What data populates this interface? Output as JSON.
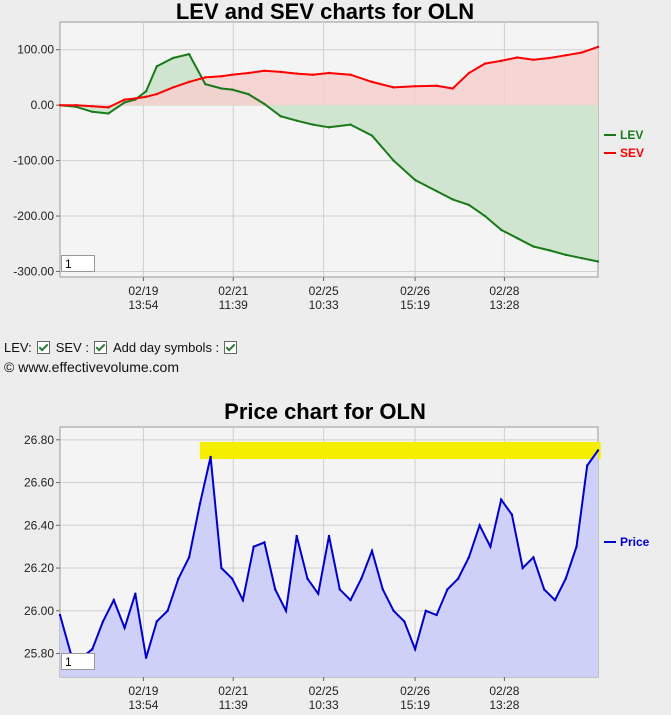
{
  "chart_data": [
    {
      "type": "area",
      "title": "LEV and SEV charts for OLN",
      "ylim": [
        -310,
        150
      ],
      "y_ticks": [
        "100.00",
        "0.00",
        "-100.00",
        "-200.00",
        "-300.00"
      ],
      "x_ticks": [
        {
          "date": "02/19",
          "time": "13:54"
        },
        {
          "date": "02/21",
          "time": "11:39"
        },
        {
          "date": "02/25",
          "time": "10:33"
        },
        {
          "date": "02/26",
          "time": "15:19"
        },
        {
          "date": "02/28",
          "time": "13:28"
        }
      ],
      "x": [
        0,
        3,
        6,
        9,
        12,
        14,
        16,
        18,
        21,
        24,
        27,
        30,
        32,
        35,
        38,
        41,
        44,
        47,
        50,
        54,
        58,
        62,
        66,
        70,
        73,
        76,
        79,
        82,
        85,
        88,
        91,
        94,
        97,
        100
      ],
      "series": [
        {
          "name": "LEV",
          "color": "#1a7a1a",
          "values": [
            0,
            -3,
            -12,
            -15,
            5,
            10,
            25,
            70,
            85,
            92,
            38,
            30,
            28,
            20,
            2,
            -20,
            -28,
            -35,
            -40,
            -35,
            -55,
            -100,
            -135,
            -155,
            -170,
            -180,
            -200,
            -225,
            -240,
            -255,
            -262,
            -270,
            -276,
            -282
          ]
        },
        {
          "name": "SEV",
          "color": "#ff0000",
          "values": [
            0,
            0,
            -2,
            -4,
            10,
            12,
            15,
            20,
            32,
            42,
            50,
            52,
            55,
            58,
            62,
            60,
            57,
            55,
            58,
            55,
            42,
            32,
            34,
            35,
            30,
            58,
            75,
            80,
            86,
            82,
            85,
            90,
            95,
            105
          ]
        }
      ],
      "legend_position": "right",
      "page_box": "1"
    },
    {
      "type": "area",
      "title": "Price chart for OLN",
      "ylim": [
        25.69,
        26.86
      ],
      "y_ticks": [
        "26.80",
        "26.60",
        "26.40",
        "26.20",
        "26.00",
        "25.80"
      ],
      "x_ticks": [
        {
          "date": "02/19",
          "time": "13:54"
        },
        {
          "date": "02/21",
          "time": "11:39"
        },
        {
          "date": "02/25",
          "time": "10:33"
        },
        {
          "date": "02/26",
          "time": "15:19"
        },
        {
          "date": "02/28",
          "time": "13:28"
        }
      ],
      "x": [
        0,
        2,
        4,
        6,
        8,
        10,
        12,
        14,
        16,
        18,
        20,
        22,
        24,
        26,
        28,
        30,
        32,
        34,
        36,
        38,
        40,
        42,
        44,
        46,
        48,
        50,
        52,
        54,
        56,
        58,
        60,
        62,
        64,
        66,
        68,
        70,
        72,
        74,
        76,
        78,
        80,
        82,
        84,
        86,
        88,
        90,
        92,
        94,
        96,
        98,
        100
      ],
      "series": [
        {
          "name": "Price",
          "color": "#0000cc",
          "values": [
            25.98,
            25.8,
            25.78,
            25.82,
            25.95,
            26.05,
            25.92,
            26.08,
            25.78,
            25.95,
            26.0,
            26.15,
            26.25,
            26.5,
            26.72,
            26.2,
            26.15,
            26.05,
            26.3,
            26.32,
            26.1,
            26.0,
            26.35,
            26.15,
            26.08,
            26.35,
            26.1,
            26.05,
            26.15,
            26.28,
            26.1,
            26.0,
            25.95,
            25.82,
            26.0,
            25.98,
            26.1,
            26.15,
            26.25,
            26.4,
            26.3,
            26.52,
            26.45,
            26.2,
            26.25,
            26.1,
            26.05,
            26.15,
            26.3,
            26.68,
            26.75
          ]
        }
      ],
      "highlight_band": [
        26.71,
        26.79
      ],
      "legend_position": "right",
      "page_box": "1"
    }
  ],
  "controls": {
    "lev_label": "LEV:",
    "sev_label": "SEV :",
    "day_symbols_label": "Add day symbols :"
  },
  "copyright": "© www.effectivevolume.com",
  "colors": {
    "lev_fill": "#cfe5cf",
    "sev_fill": "#f6cfcf",
    "price_fill": "#cfd0f7",
    "highlight": "#f4ee00",
    "plot_bg": "#f4f4f4"
  }
}
